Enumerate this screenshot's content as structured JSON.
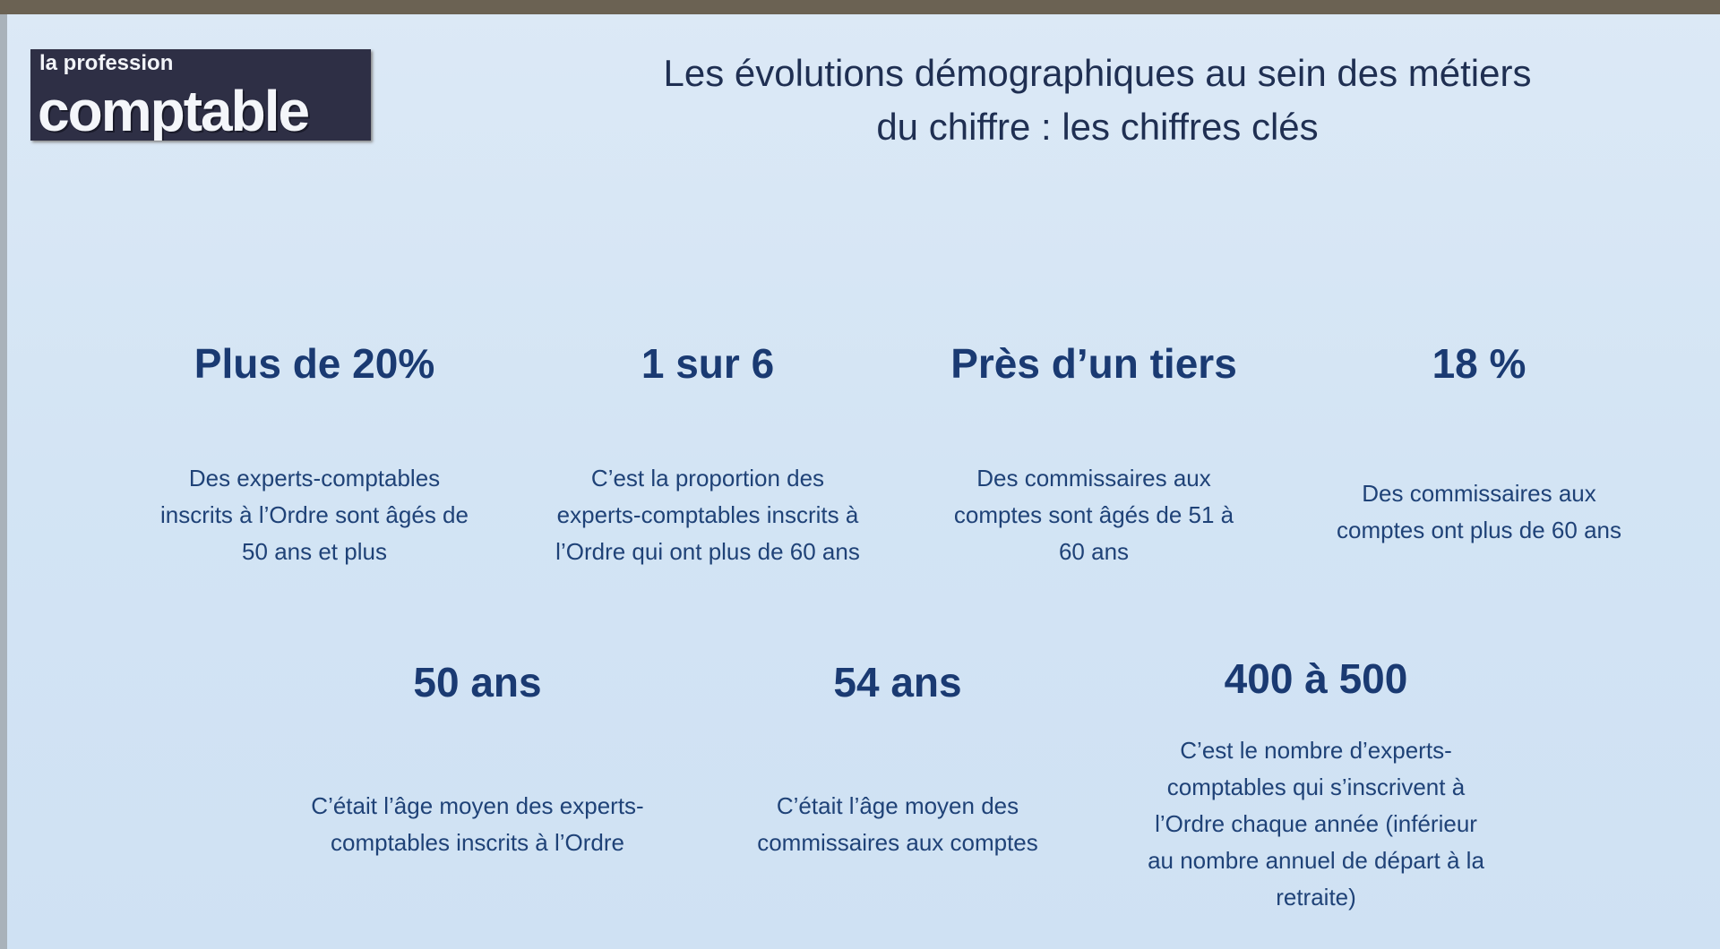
{
  "logo": {
    "line1": "la profession",
    "line2": "comptable"
  },
  "title": {
    "line1": "Les évolutions démographiques au sein des métiers",
    "line2": "du chiffre : les chiffres clés"
  },
  "stats": [
    {
      "value": "Plus de 20%",
      "desc": [
        "Des experts-comptables",
        "inscrits à l’Ordre sont âgés de",
        "50 ans et plus"
      ]
    },
    {
      "value": "1 sur 6",
      "desc": [
        "C’est la proportion des",
        "experts-comptables inscrits à",
        "l’Ordre qui ont plus de 60 ans"
      ]
    },
    {
      "value": "Près d’un tiers",
      "desc": [
        "Des commissaires aux",
        "comptes sont âgés de 51 à",
        "60 ans"
      ]
    },
    {
      "value": "18 %",
      "desc": [
        "Des commissaires aux",
        "comptes ont plus de 60 ans"
      ]
    },
    {
      "value": "50 ans",
      "desc": [
        "C’était l’âge moyen des experts-",
        "comptables inscrits à l’Ordre"
      ]
    },
    {
      "value": "54 ans",
      "desc": [
        "C’était l’âge moyen des",
        "commissaires aux comptes"
      ]
    },
    {
      "value": "400 à 500",
      "desc": [
        "C’est le nombre d’experts-",
        "comptables qui s’inscrivent à",
        "l’Ordre chaque année (inférieur",
        "au nombre annuel de départ à la",
        "retraite)"
      ]
    }
  ],
  "colors": {
    "background": "#d6e6f4",
    "text": "#1c3a6b",
    "logo_bg": "#2e2f45"
  }
}
